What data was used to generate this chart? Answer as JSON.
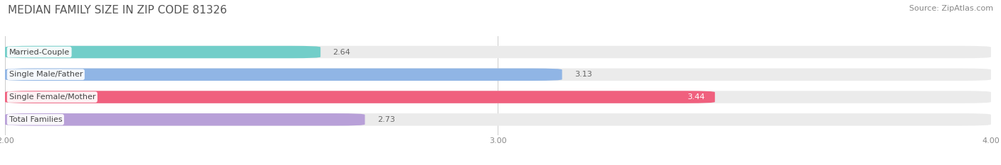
{
  "title": "MEDIAN FAMILY SIZE IN ZIP CODE 81326",
  "source": "Source: ZipAtlas.com",
  "categories": [
    "Married-Couple",
    "Single Male/Father",
    "Single Female/Mother",
    "Total Families"
  ],
  "values": [
    2.64,
    3.13,
    3.44,
    2.73
  ],
  "bar_colors": [
    "#72cec9",
    "#90b5e5",
    "#f0607e",
    "#b8a0d8"
  ],
  "value_label_inside": [
    false,
    false,
    true,
    false
  ],
  "xlim": [
    2.0,
    4.0
  ],
  "xstart": 2.0,
  "xticks": [
    2.0,
    3.0,
    4.0
  ],
  "xtick_labels": [
    "2.00",
    "3.00",
    "4.00"
  ],
  "background_color": "#ffffff",
  "bar_bg_color": "#ebebeb",
  "title_fontsize": 11,
  "source_fontsize": 8,
  "label_fontsize": 8,
  "value_fontsize": 8,
  "tick_fontsize": 8,
  "bar_height": 0.55,
  "bar_gap": 0.45
}
